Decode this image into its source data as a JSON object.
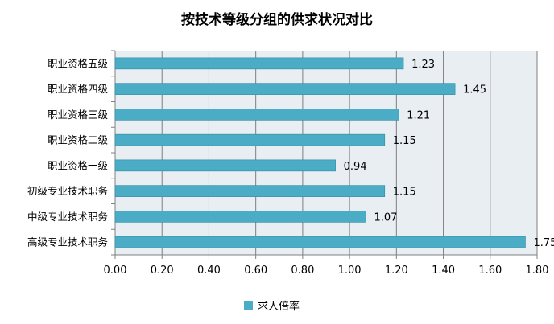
{
  "chart_data": {
    "type": "bar",
    "orientation": "horizontal",
    "title": "按技术等级分组的供求状况对比",
    "categories": [
      "职业资格五级",
      "职业资格四级",
      "职业资格三级",
      "职业资格二级",
      "职业资格一级",
      "初级专业技术职务",
      "中级专业技术职务",
      "高级专业技术职务"
    ],
    "series": [
      {
        "name": "求人倍率",
        "values": [
          1.23,
          1.45,
          1.21,
          1.15,
          0.94,
          1.15,
          1.07,
          1.75
        ],
        "color": "#4bacc6"
      }
    ],
    "data_labels": [
      "1.23",
      "1.45",
      "1.21",
      "1.15",
      "0.94",
      "1.15",
      "1.07",
      "1.75"
    ],
    "xlim": [
      0,
      1.8
    ],
    "ticks": [
      "0.00",
      "0.20",
      "0.40",
      "0.60",
      "0.80",
      "1.00",
      "1.20",
      "1.40",
      "1.60",
      "1.80"
    ],
    "grid": true,
    "legend_position": "bottom",
    "plot_background": "#e8eef2",
    "gridline_color": "#7f7f7f"
  }
}
